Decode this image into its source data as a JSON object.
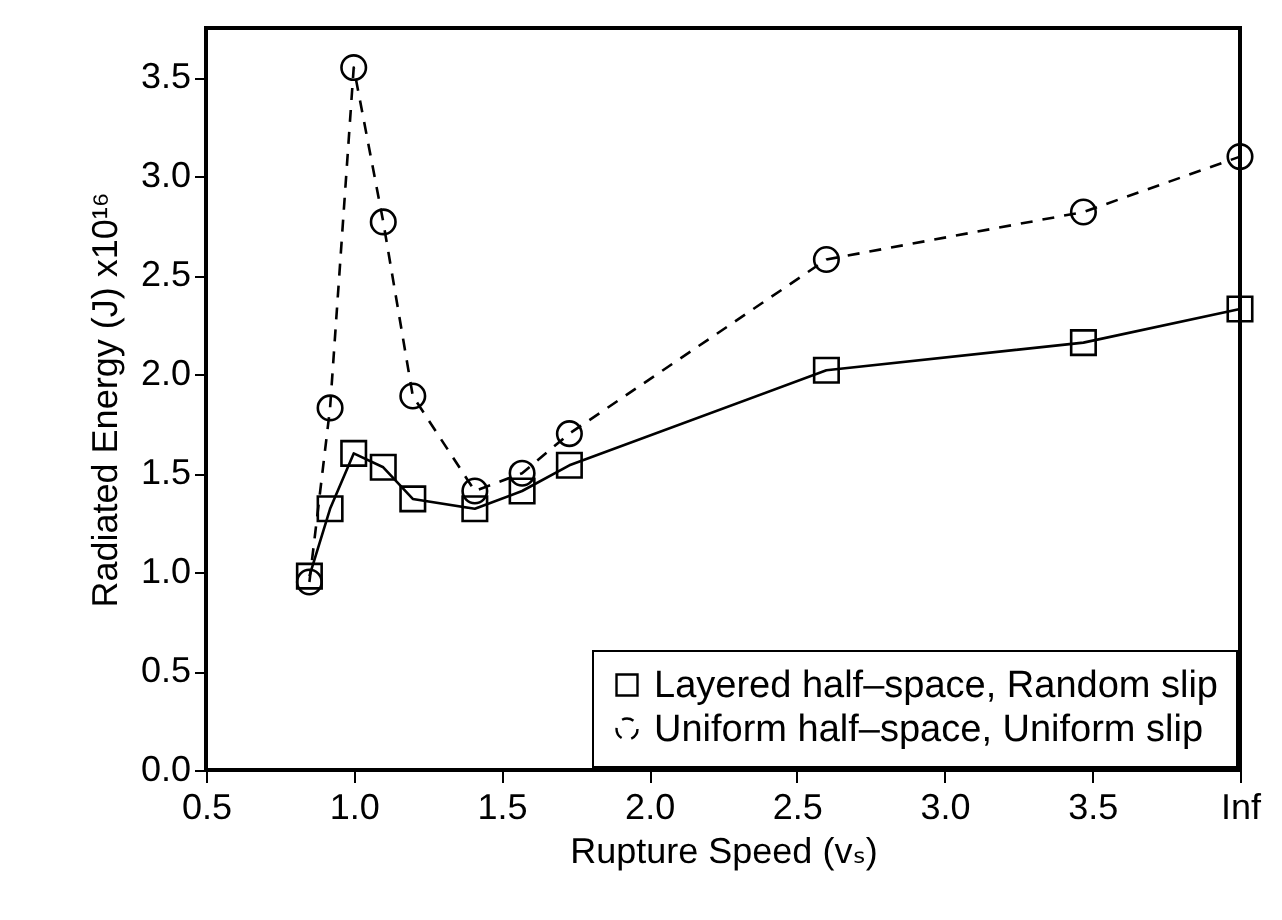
{
  "chart_data": {
    "type": "line",
    "xlabel": "Rupture Speed (vₛ)",
    "ylabel": "Radiated Energy (J) x10¹⁶",
    "x": [
      0.85,
      0.92,
      1.0,
      1.1,
      1.2,
      1.41,
      1.57,
      1.73,
      2.6,
      3.47,
      4.0
    ],
    "series": [
      {
        "name": "Layered half–space, Random slip",
        "color": "#000000",
        "marker": "square",
        "line_style": "solid",
        "values": [
          0.98,
          1.32,
          1.6,
          1.53,
          1.37,
          1.32,
          1.41,
          1.54,
          2.02,
          2.16,
          2.33
        ]
      },
      {
        "name": "Uniform half–space, Uniform slip",
        "color": "#000000",
        "marker": "circle",
        "line_style": "dashed",
        "values": [
          0.95,
          1.83,
          3.55,
          2.77,
          1.89,
          1.41,
          1.5,
          1.7,
          2.58,
          2.82,
          3.1
        ]
      }
    ],
    "xlim": [
      0.5,
      4.0
    ],
    "xticks": [
      {
        "value": 0.5,
        "label": "0.5"
      },
      {
        "value": 1.0,
        "label": "1.0"
      },
      {
        "value": 1.5,
        "label": "1.5"
      },
      {
        "value": 2.0,
        "label": "2.0"
      },
      {
        "value": 2.5,
        "label": "2.5"
      },
      {
        "value": 3.0,
        "label": "3.0"
      },
      {
        "value": 3.5,
        "label": "3.5"
      },
      {
        "value": 4.0,
        "label": "Inf"
      }
    ],
    "ylim": [
      0,
      3.75
    ],
    "yticks": [
      {
        "value": 0,
        "label": "0.0"
      },
      {
        "value": 0.5,
        "label": "0.5"
      },
      {
        "value": 1.0,
        "label": "1.0"
      },
      {
        "value": 1.5,
        "label": "1.5"
      },
      {
        "value": 2.0,
        "label": "2.0"
      },
      {
        "value": 2.5,
        "label": "2.5"
      },
      {
        "value": 3.0,
        "label": "3.0"
      },
      {
        "value": 3.5,
        "label": "3.5"
      }
    ],
    "grid": false,
    "legend": "bottom right"
  }
}
